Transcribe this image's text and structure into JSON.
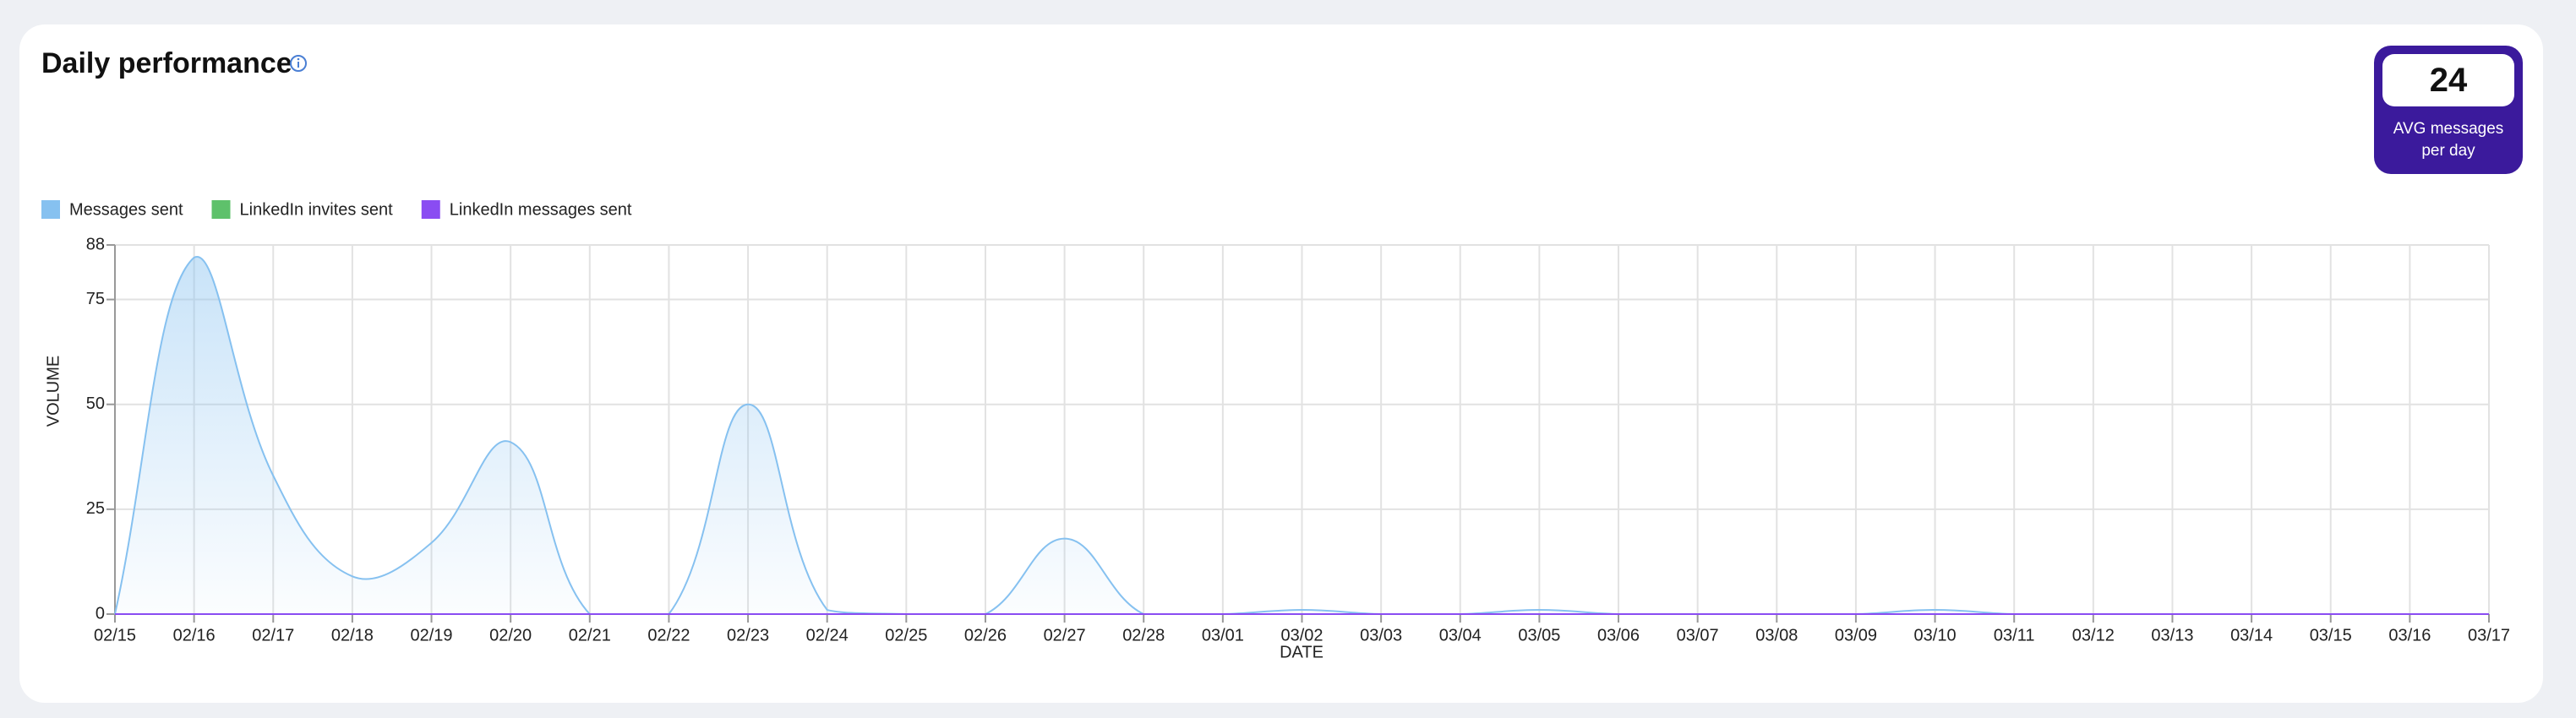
{
  "header": {
    "title": "Daily performance"
  },
  "summary": {
    "value": "24",
    "label": "AVG messages per day"
  },
  "chart_data": {
    "type": "line",
    "x_label": "DATE",
    "y_label": "VOLUME",
    "categories": [
      "02/15",
      "02/16",
      "02/17",
      "02/18",
      "02/19",
      "02/20",
      "02/21",
      "02/22",
      "02/23",
      "02/24",
      "02/25",
      "02/26",
      "02/27",
      "02/28",
      "03/01",
      "03/02",
      "03/03",
      "03/04",
      "03/05",
      "03/06",
      "03/07",
      "03/08",
      "03/09",
      "03/10",
      "03/11",
      "03/12",
      "03/13",
      "03/14",
      "03/15",
      "03/16",
      "03/17"
    ],
    "series": [
      {
        "name": "Messages sent",
        "color": "#86c1f0",
        "fill": true,
        "values": [
          0,
          85,
          33,
          9,
          17,
          41,
          0,
          0,
          50,
          1,
          0,
          0,
          18,
          0,
          0,
          1,
          0,
          0,
          1,
          0,
          0,
          0,
          0,
          1,
          0,
          0,
          0,
          0,
          0,
          0,
          0
        ]
      },
      {
        "name": "LinkedIn invites sent",
        "color": "#5ec16b",
        "fill": false,
        "values": [
          0,
          0,
          0,
          0,
          0,
          0,
          0,
          0,
          0,
          0,
          0,
          0,
          0,
          0,
          0,
          0,
          0,
          0,
          0,
          0,
          0,
          0,
          0,
          0,
          0,
          0,
          0,
          0,
          0,
          0,
          0
        ]
      },
      {
        "name": "LinkedIn messages sent",
        "color": "#8a4cf2",
        "fill": false,
        "values": [
          0,
          0,
          0,
          0,
          0,
          0,
          0,
          0,
          0,
          0,
          0,
          0,
          0,
          0,
          0,
          0,
          0,
          0,
          0,
          0,
          0,
          0,
          0,
          0,
          0,
          0,
          0,
          0,
          0,
          0,
          0
        ]
      }
    ],
    "ylim": [
      0,
      88
    ],
    "yticks": [
      0,
      25,
      50,
      75,
      88
    ],
    "grid": true
  }
}
